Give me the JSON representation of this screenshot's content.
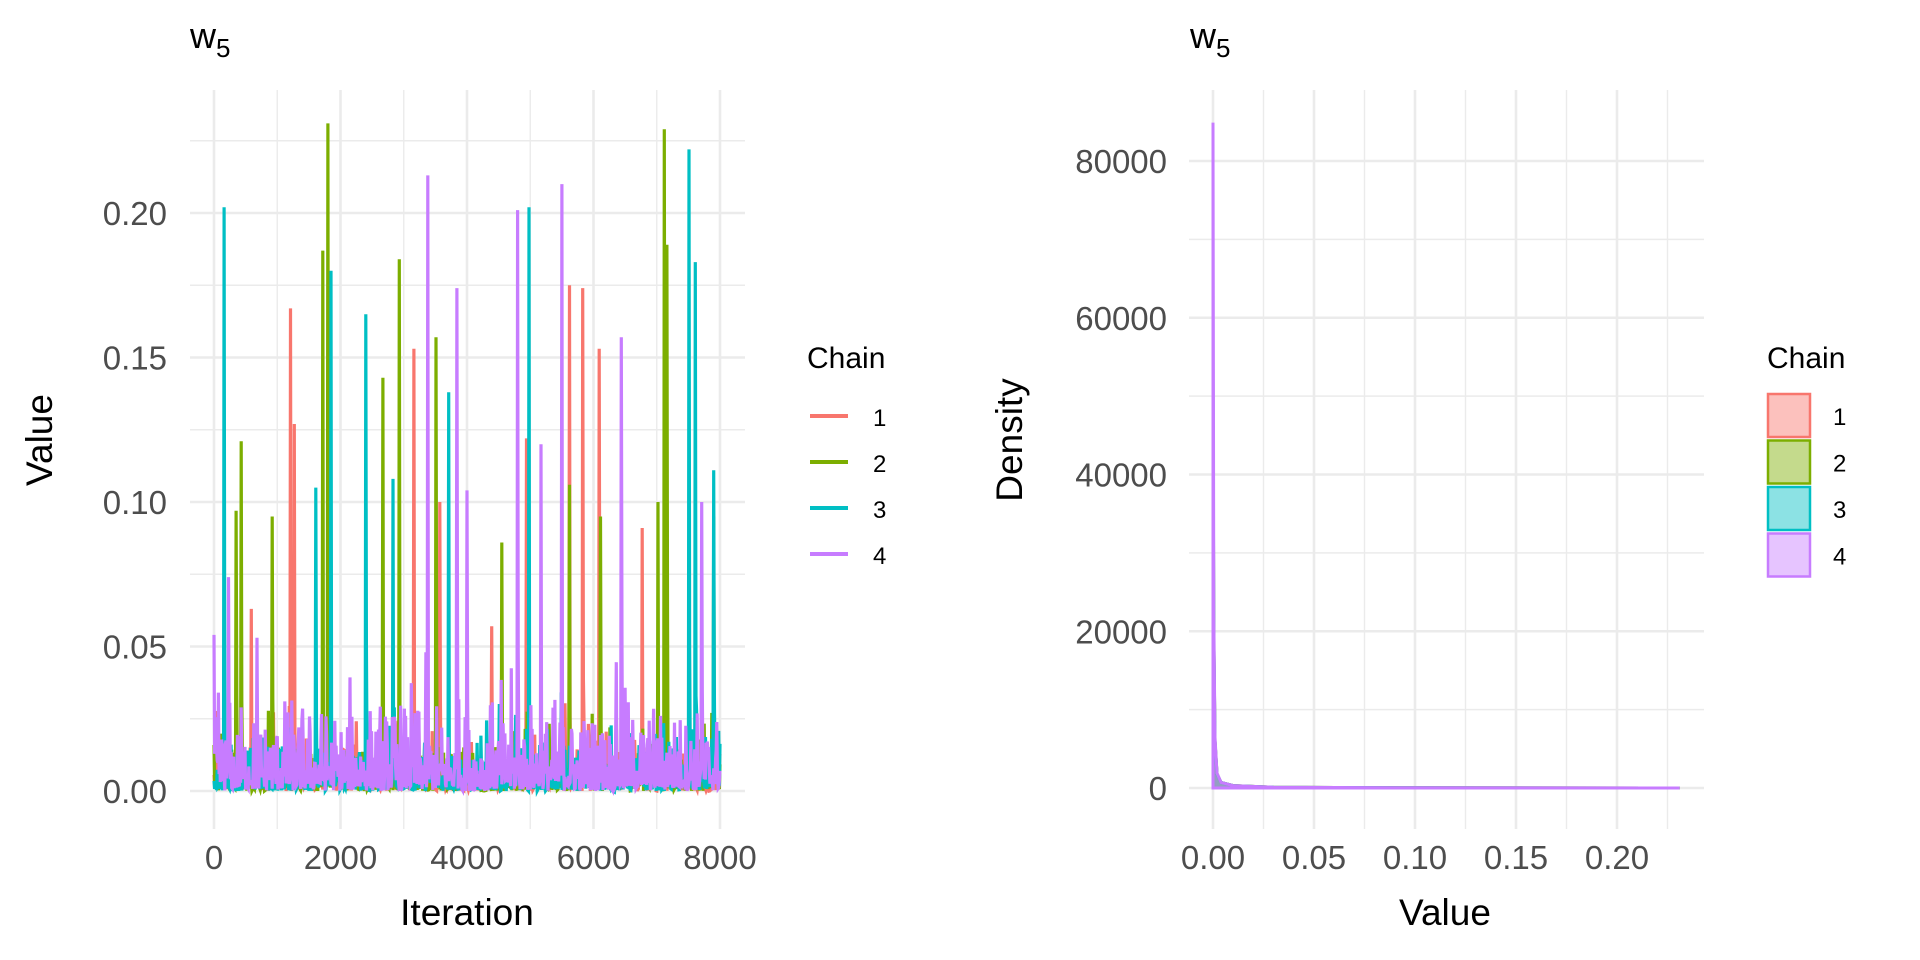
{
  "chart_data": [
    {
      "type": "line",
      "panel": "trace",
      "title": "w",
      "title_subscript": "5",
      "xlabel": "Iteration",
      "ylabel": "Value",
      "xlim": [
        0,
        8000
      ],
      "ylim": [
        0,
        0.242
      ],
      "x_ticks": [
        0,
        2000,
        4000,
        6000,
        8000
      ],
      "x_tick_labels": [
        "0",
        "2000",
        "4000",
        "6000",
        "8000"
      ],
      "y_ticks": [
        0,
        0.05,
        0.1,
        0.15,
        0.2
      ],
      "y_tick_labels": [
        "0.00",
        "0.05",
        "0.10",
        "0.15",
        "0.20"
      ],
      "grid": true,
      "legend": {
        "title": "Chain",
        "placement": "right",
        "entries": [
          "1",
          "2",
          "3",
          "4"
        ]
      },
      "baseline_typical_max": 0.03,
      "series": [
        {
          "name": "1",
          "color": "#F8766D",
          "peaks": [
            [
              585,
              0.063
            ],
            [
              1210,
              0.167
            ],
            [
              1268,
              0.127
            ],
            [
              3161,
              0.153
            ],
            [
              3571,
              0.1
            ],
            [
              4390,
              0.057
            ],
            [
              4937,
              0.122
            ],
            [
              5620,
              0.175
            ],
            [
              5834,
              0.174
            ],
            [
              6088,
              0.153
            ],
            [
              6771,
              0.091
            ]
          ]
        },
        {
          "name": "2",
          "color": "#7CAE00",
          "peaks": [
            [
              351,
              0.097
            ],
            [
              429,
              0.121
            ],
            [
              917,
              0.095
            ],
            [
              1717,
              0.187
            ],
            [
              1795,
              0.231
            ],
            [
              2673,
              0.143
            ],
            [
              2927,
              0.184
            ],
            [
              3512,
              0.157
            ],
            [
              4546,
              0.086
            ],
            [
              5619,
              0.106
            ],
            [
              6107,
              0.095
            ],
            [
              7024,
              0.1
            ],
            [
              7122,
              0.229
            ],
            [
              7161,
              0.189
            ],
            [
              7902,
              0.095
            ]
          ]
        },
        {
          "name": "3",
          "color": "#00BFC4",
          "peaks": [
            [
              156,
              0.202
            ],
            [
              1610,
              0.105
            ],
            [
              1854,
              0.18
            ],
            [
              2400,
              0.165
            ],
            [
              2829,
              0.108
            ],
            [
              3707,
              0.138
            ],
            [
              4976,
              0.202
            ],
            [
              7512,
              0.222
            ],
            [
              7610,
              0.183
            ],
            [
              7902,
              0.111
            ]
          ]
        },
        {
          "name": "4",
          "color": "#C77CFF",
          "peaks": [
            [
              0,
              0.054
            ],
            [
              234,
              0.074
            ],
            [
              683,
              0.053
            ],
            [
              3376,
              0.213
            ],
            [
              3844,
              0.174
            ],
            [
              4000,
              0.104
            ],
            [
              4800,
              0.201
            ],
            [
              5171,
              0.12
            ],
            [
              5502,
              0.21
            ],
            [
              6439,
              0.157
            ],
            [
              7707,
              0.1
            ]
          ]
        }
      ]
    },
    {
      "type": "area",
      "panel": "density",
      "title": "w",
      "title_subscript": "5",
      "xlabel": "Value",
      "ylabel": "Density",
      "xlim": [
        0,
        0.231
      ],
      "ylim": [
        0,
        87000
      ],
      "x_ticks": [
        0,
        0.05,
        0.1,
        0.15,
        0.2
      ],
      "x_tick_labels": [
        "0.00",
        "0.05",
        "0.10",
        "0.15",
        "0.20"
      ],
      "y_ticks": [
        0,
        20000,
        40000,
        60000,
        80000
      ],
      "y_tick_labels": [
        "0",
        "20000",
        "40000",
        "60000",
        "80000"
      ],
      "grid": true,
      "legend": {
        "title": "Chain",
        "placement": "right",
        "entries": [
          "1",
          "2",
          "3",
          "4"
        ]
      },
      "series": [
        {
          "name": "1",
          "color": "#F8766D",
          "points": [
            [
              0,
              52000
            ],
            [
              0.0004,
              20000
            ],
            [
              0.001,
              6000
            ],
            [
              0.002,
              1800
            ],
            [
              0.004,
              700
            ],
            [
              0.01,
              300
            ],
            [
              0.03,
              100
            ],
            [
              0.1,
              30
            ],
            [
              0.231,
              5
            ]
          ]
        },
        {
          "name": "2",
          "color": "#7CAE00",
          "points": [
            [
              0,
              50000
            ],
            [
              0.0004,
              19000
            ],
            [
              0.001,
              6000
            ],
            [
              0.002,
              1800
            ],
            [
              0.004,
              700
            ],
            [
              0.01,
              300
            ],
            [
              0.03,
              100
            ],
            [
              0.1,
              30
            ],
            [
              0.231,
              5
            ]
          ]
        },
        {
          "name": "3",
          "color": "#00BFC4",
          "points": [
            [
              0,
              53000
            ],
            [
              0.0004,
              20000
            ],
            [
              0.001,
              6000
            ],
            [
              0.002,
              1800
            ],
            [
              0.004,
              700
            ],
            [
              0.01,
              300
            ],
            [
              0.03,
              100
            ],
            [
              0.1,
              30
            ],
            [
              0.231,
              5
            ]
          ]
        },
        {
          "name": "4",
          "color": "#C77CFF",
          "points": [
            [
              0,
              84900
            ],
            [
              0.0004,
              22000
            ],
            [
              0.001,
              6500
            ],
            [
              0.002,
              1900
            ],
            [
              0.004,
              700
            ],
            [
              0.01,
              300
            ],
            [
              0.03,
              100
            ],
            [
              0.1,
              30
            ],
            [
              0.231,
              5
            ]
          ]
        }
      ]
    }
  ]
}
